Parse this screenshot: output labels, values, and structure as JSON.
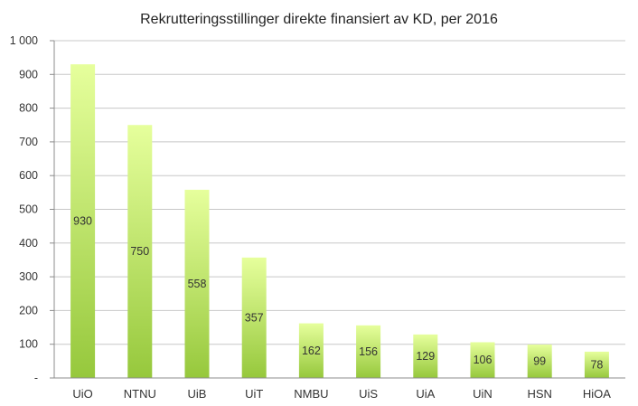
{
  "chart_data": {
    "type": "bar",
    "title": "Rekrutteringsstillinger direkte finansiert av KD, per 2016",
    "xlabel": "",
    "ylabel": "",
    "categories": [
      "UiO",
      "NTNU",
      "UiB",
      "UiT",
      "NMBU",
      "UiS",
      "UiA",
      "UiN",
      "HSN",
      "HiOA"
    ],
    "values": [
      930,
      750,
      558,
      357,
      162,
      156,
      129,
      106,
      99,
      78
    ],
    "data_labels": [
      "930",
      "750",
      "558",
      "357",
      "162",
      "156",
      "129",
      "106",
      "99",
      "78"
    ],
    "ylim": [
      0,
      1000
    ],
    "yticks": [
      0,
      100,
      200,
      300,
      400,
      500,
      600,
      700,
      800,
      900,
      1000
    ],
    "ytick_labels": [
      "-",
      "100",
      "200",
      "300",
      "400",
      "500",
      "600",
      "700",
      "800",
      "900",
      "1 000"
    ],
    "grid": true,
    "legend": "none",
    "colors": {
      "bar_top": "#e6ff9c",
      "bar_bottom": "#96c83c",
      "grid": "#c8c8c8",
      "axis": "#8c8c8c"
    }
  }
}
